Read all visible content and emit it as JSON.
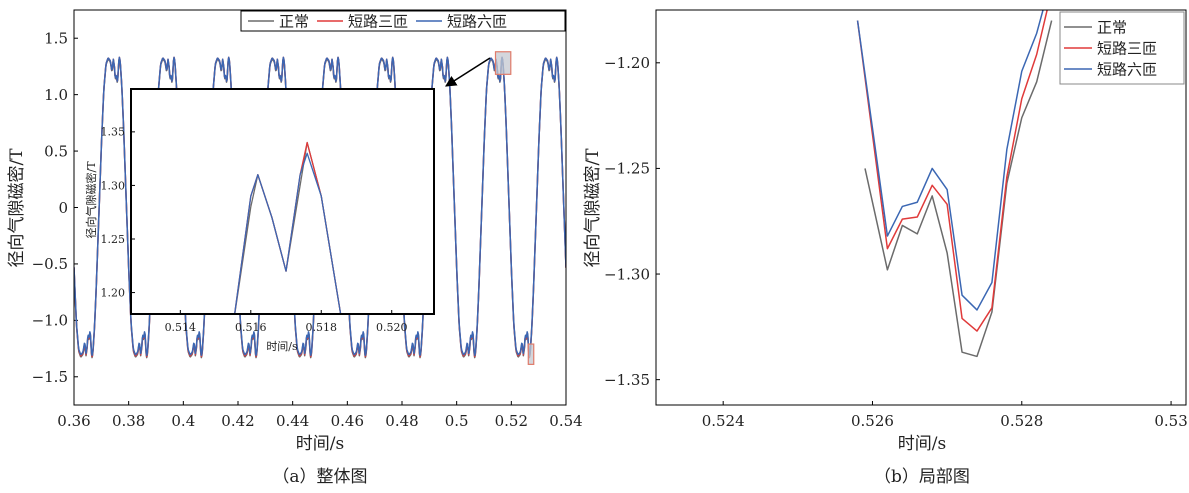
{
  "panels": {
    "a": {
      "caption": "（a）整体图"
    },
    "b": {
      "caption": "（b）局部图"
    }
  },
  "legend": [
    "正常",
    "短路三匝",
    "短路六匝"
  ],
  "colors": {
    "正常": "#6b6b6b",
    "短路三匝": "#e03a3a",
    "短路六匝": "#3b67b3",
    "highlight_edge": "#e07b6a",
    "highlight_fill": "#c4c8d0"
  },
  "chart_data": [
    {
      "id": "overall",
      "type": "line",
      "xlabel": "时间/s",
      "ylabel": "径向气隙磁密/T",
      "xlim": [
        0.36,
        0.54
      ],
      "ylim": [
        -1.75,
        1.75
      ],
      "xticks": [
        0.36,
        0.38,
        0.4,
        0.42,
        0.44,
        0.46,
        0.48,
        0.5,
        0.52,
        0.54
      ],
      "xtick_labels": [
        "0.36",
        "0.38",
        "0.4",
        "0.42",
        "0.44",
        "0.46",
        "0.48",
        "0.5",
        "0.52",
        "0.54"
      ],
      "yticks": [
        -1.5,
        -1.0,
        -0.5,
        0,
        0.5,
        1.0,
        1.5
      ],
      "ytick_labels": [
        "−1.5",
        "−1.0",
        "−0.5",
        "0",
        "0.5",
        "1.0",
        "1.5"
      ],
      "legend_position": "top",
      "series": [
        {
          "name": "正常",
          "period_s": 0.02,
          "first_positive_peak_s": 0.3765,
          "peak_T": 1.33,
          "trough_T": -1.34
        },
        {
          "name": "短路三匝",
          "period_s": 0.02,
          "first_positive_peak_s": 0.3765,
          "peak_T": 1.34,
          "trough_T": -1.33
        },
        {
          "name": "短路六匝",
          "period_s": 0.02,
          "first_positive_peak_s": 0.3765,
          "peak_T": 1.34,
          "trough_T": -1.32
        }
      ],
      "highlight_regions": [
        {
          "x": [
            0.5142,
            0.5198
          ],
          "y": [
            1.18,
            1.38
          ]
        },
        {
          "x": [
            0.5262,
            0.5282
          ],
          "y": [
            -1.39,
            -1.21
          ]
        }
      ]
    },
    {
      "id": "inset",
      "type": "line",
      "xlabel": "时间/s",
      "ylabel": "径向气隙磁密/T",
      "xlim": [
        0.5126,
        0.5212
      ],
      "ylim": [
        1.18,
        1.39
      ],
      "xticks": [
        0.514,
        0.516,
        0.518,
        0.52
      ],
      "xtick_labels": [
        "0.514",
        "0.516",
        "0.518",
        "0.520"
      ],
      "yticks": [
        1.2,
        1.25,
        1.3,
        1.35
      ],
      "ytick_labels": [
        "1.20",
        "1.25",
        "1.30",
        "1.35"
      ],
      "series": [
        {
          "name": "正常",
          "x": [
            0.5155,
            0.516,
            0.5162,
            0.5166,
            0.517,
            0.5174,
            0.5176,
            0.518,
            0.5186
          ],
          "y": [
            1.17,
            1.28,
            1.31,
            1.27,
            1.22,
            1.3,
            1.34,
            1.29,
            1.17
          ]
        },
        {
          "name": "短路三匝",
          "x": [
            0.5155,
            0.516,
            0.5162,
            0.5166,
            0.517,
            0.5174,
            0.5176,
            0.518,
            0.5186
          ],
          "y": [
            1.17,
            1.29,
            1.31,
            1.27,
            1.22,
            1.31,
            1.34,
            1.29,
            1.17
          ]
        },
        {
          "name": "短路六匝",
          "x": [
            0.5155,
            0.516,
            0.5162,
            0.5166,
            0.517,
            0.5174,
            0.5176,
            0.518,
            0.5186
          ],
          "y": [
            1.17,
            1.29,
            1.31,
            1.27,
            1.22,
            1.31,
            1.33,
            1.29,
            1.17
          ]
        }
      ]
    },
    {
      "id": "local",
      "type": "line",
      "xlabel": "时间/s",
      "ylabel": "径向气隙磁密/T",
      "xlim": [
        0.5231,
        0.5302
      ],
      "ylim": [
        -1.362,
        -1.175
      ],
      "xticks": [
        0.524,
        0.526,
        0.528,
        0.53
      ],
      "xtick_labels": [
        "0.524",
        "0.526",
        "0.528",
        "0.53"
      ],
      "yticks": [
        -1.35,
        -1.3,
        -1.25,
        -1.2
      ],
      "ytick_labels": [
        "−1.35",
        "−1.30",
        "−1.25",
        "−1.20"
      ],
      "legend_position": "top-right",
      "series": [
        {
          "name": "正常",
          "x": [
            0.5259,
            0.5262,
            0.5264,
            0.5266,
            0.5268,
            0.527,
            0.5272,
            0.5274,
            0.5276,
            0.5278,
            0.528,
            0.5282,
            0.5284
          ],
          "y": [
            -1.25,
            -1.298,
            -1.277,
            -1.281,
            -1.263,
            -1.29,
            -1.337,
            -1.339,
            -1.318,
            -1.257,
            -1.226,
            -1.209,
            -1.18
          ]
        },
        {
          "name": "短路三匝",
          "x": [
            0.5258,
            0.5262,
            0.5264,
            0.5266,
            0.5268,
            0.527,
            0.5272,
            0.5274,
            0.5276,
            0.5278,
            0.528,
            0.5282,
            0.5284
          ],
          "y": [
            -1.18,
            -1.288,
            -1.274,
            -1.273,
            -1.258,
            -1.267,
            -1.321,
            -1.327,
            -1.316,
            -1.254,
            -1.217,
            -1.196,
            -1.166
          ]
        },
        {
          "name": "短路六匝",
          "x": [
            0.5258,
            0.5262,
            0.5264,
            0.5266,
            0.5268,
            0.527,
            0.5272,
            0.5274,
            0.5276,
            0.5278,
            0.528,
            0.5282,
            0.5284
          ],
          "y": [
            -1.18,
            -1.282,
            -1.268,
            -1.266,
            -1.25,
            -1.26,
            -1.31,
            -1.317,
            -1.304,
            -1.241,
            -1.204,
            -1.186,
            -1.16
          ]
        }
      ]
    }
  ]
}
